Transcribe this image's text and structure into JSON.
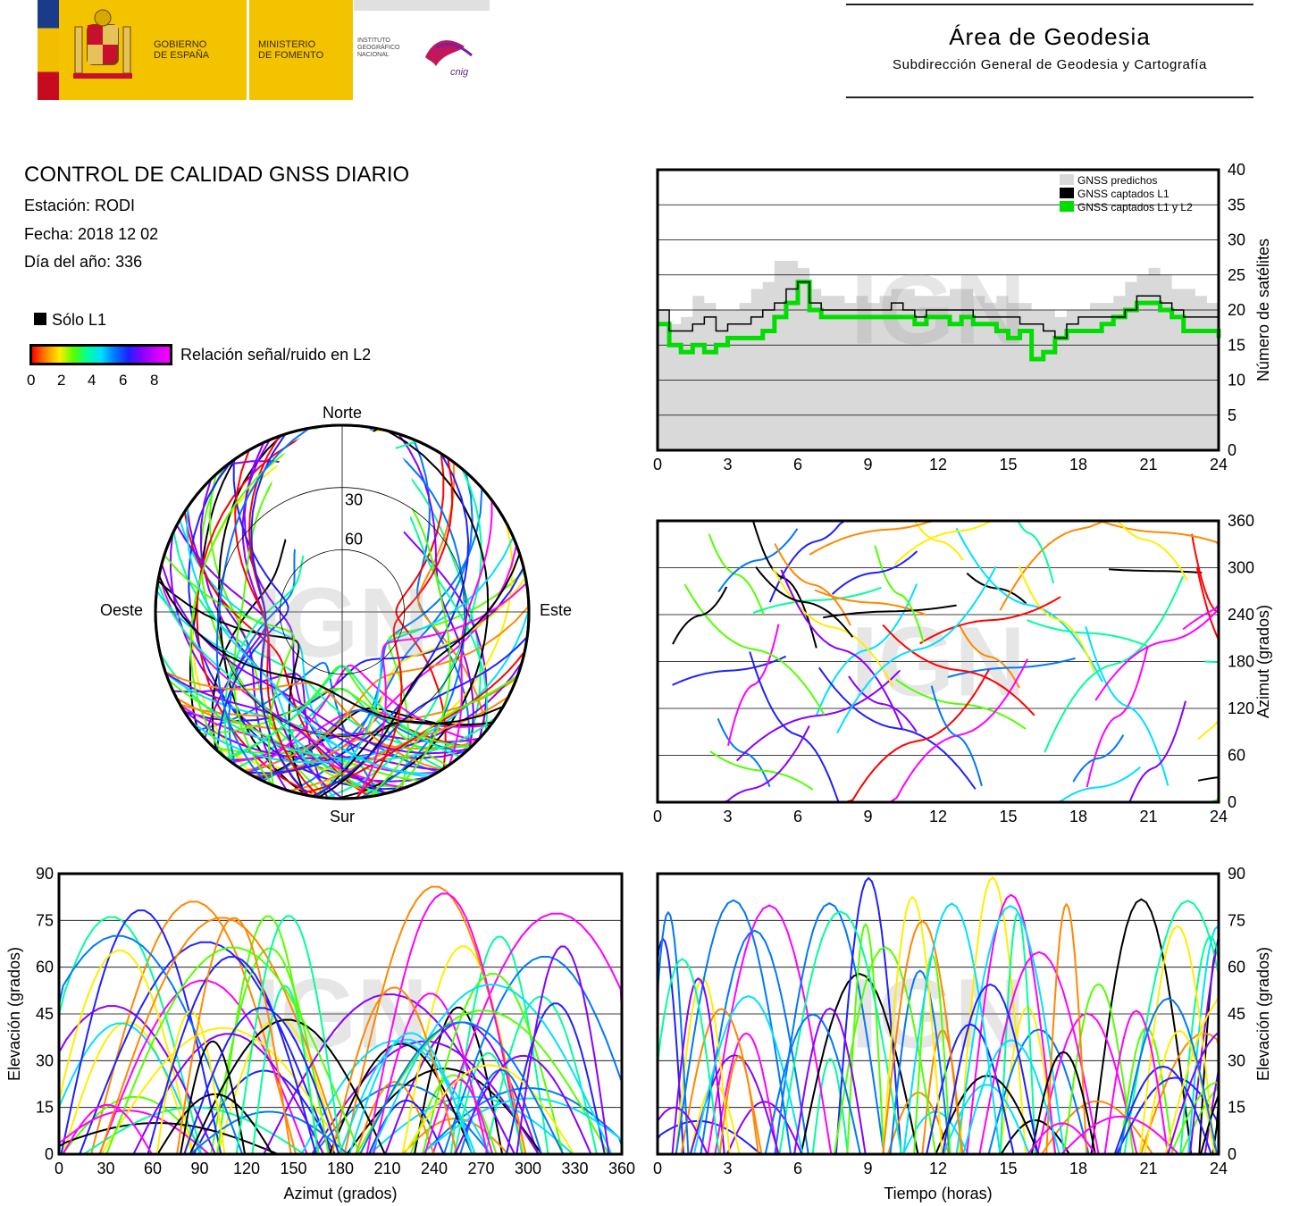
{
  "header": {
    "gobierno": [
      "GOBIERNO",
      "DE ESPAÑA"
    ],
    "ministerio": [
      "MINISTERIO",
      "DE FOMENTO"
    ],
    "instituto": [
      "INSTITUTO",
      "GEOGRÁFICO",
      "NACIONAL"
    ],
    "cnig": "cnig",
    "area_title": "Área de Geodesia",
    "area_subtitle": "Subdirección General de Geodesia y Cartografía"
  },
  "info": {
    "title": "CONTROL DE CALIDAD GNSS DIARIO",
    "station": "Estación: RODI",
    "date": "Fecha: 2018 12 02",
    "doy": "Día del año: 336",
    "only_l1": "Sólo L1",
    "snr_label": "Relación señal/ruido en L2",
    "snr_ticks": [
      "0",
      "2",
      "4",
      "6",
      "8"
    ]
  },
  "watermark": "IGN",
  "colors": {
    "predicted": "#d9d9d9",
    "l1": "#000000",
    "l1l2": "#00dd00",
    "snr_scale": [
      "#ff0000",
      "#ff8800",
      "#ffee00",
      "#55ff00",
      "#00ff99",
      "#00e0ff",
      "#0077ff",
      "#2020ff",
      "#8800ff",
      "#ff00ff"
    ]
  },
  "chart_data": [
    {
      "type": "line",
      "panel": "satellite-count",
      "xlim": [
        0,
        24
      ],
      "ylim": [
        0,
        40
      ],
      "xticks": [
        "0",
        "3",
        "6",
        "9",
        "12",
        "15",
        "18",
        "21",
        "24"
      ],
      "yticks": [
        "0",
        "5",
        "10",
        "15",
        "20",
        "25",
        "30",
        "35",
        "40"
      ],
      "ylabel": "Número de satélites",
      "grid": true,
      "legend_position": "top-right",
      "legend": [
        "GNSS predichos",
        "GNSS captados L1",
        "GNSS captados L1 y L2"
      ],
      "x": [
        0,
        0.5,
        1,
        1.5,
        2,
        2.5,
        3,
        3.5,
        4,
        4.5,
        5,
        5.5,
        6,
        6.5,
        7,
        7.5,
        8,
        8.5,
        9,
        9.5,
        10,
        10.5,
        11,
        11.5,
        12,
        12.5,
        13,
        13.5,
        14,
        14.5,
        15,
        15.5,
        16,
        16.5,
        17,
        17.5,
        18,
        18.5,
        19,
        19.5,
        20,
        20.5,
        21,
        21.5,
        22,
        22.5,
        23,
        23.5,
        24
      ],
      "series": [
        {
          "name": "GNSS predichos",
          "values": [
            20,
            18,
            19,
            22,
            21,
            20,
            20,
            21,
            23,
            24,
            27,
            27,
            26,
            23,
            22,
            22,
            21,
            22,
            21,
            22,
            23,
            23,
            22,
            22,
            22,
            23,
            23,
            22,
            21,
            22,
            21,
            21,
            20,
            20,
            19,
            20,
            20,
            21,
            21,
            22,
            24,
            25,
            26,
            25,
            23,
            23,
            22,
            21,
            20
          ]
        },
        {
          "name": "GNSS captados L1",
          "values": [
            20,
            17,
            17,
            18,
            19,
            17,
            18,
            18,
            19,
            20,
            21,
            23,
            24,
            21,
            20,
            20,
            20,
            20,
            20,
            20,
            21,
            20,
            19,
            20,
            20,
            20,
            20,
            19,
            19,
            19,
            19,
            18,
            18,
            17,
            16,
            18,
            19,
            19,
            19,
            19,
            20,
            22,
            22,
            21,
            20,
            19,
            19,
            19,
            18
          ]
        },
        {
          "name": "GNSS captados L1 y L2",
          "values": [
            18,
            15,
            14,
            15,
            14,
            15,
            16,
            16,
            16,
            17,
            19,
            21,
            24,
            20,
            19,
            19,
            19,
            19,
            19,
            19,
            19,
            19,
            18,
            19,
            19,
            18,
            19,
            18,
            18,
            17,
            16,
            17,
            13,
            14,
            16,
            17,
            17,
            17,
            18,
            19,
            20,
            21,
            21,
            20,
            19,
            17,
            17,
            17,
            16
          ]
        }
      ]
    },
    {
      "type": "scatter",
      "panel": "skyplot",
      "labels": {
        "north": "Norte",
        "south": "Sur",
        "east": "Este",
        "west": "Oeste"
      },
      "ring_labels": [
        "30",
        "60"
      ]
    },
    {
      "type": "scatter",
      "panel": "azimuth-vs-time",
      "xlim": [
        0,
        24
      ],
      "ylim": [
        0,
        360
      ],
      "xticks": [
        "0",
        "3",
        "6",
        "9",
        "12",
        "15",
        "18",
        "21",
        "24"
      ],
      "yticks": [
        "0",
        "60",
        "120",
        "180",
        "240",
        "300",
        "360"
      ],
      "ylabel": "Azimut (grados)",
      "grid": true
    },
    {
      "type": "scatter",
      "panel": "elevation-vs-azimuth",
      "xlim": [
        0,
        360
      ],
      "ylim": [
        0,
        90
      ],
      "xticks": [
        "0",
        "30",
        "60",
        "90",
        "120",
        "150",
        "180",
        "210",
        "240",
        "270",
        "300",
        "330",
        "360"
      ],
      "yticks": [
        "0",
        "15",
        "30",
        "45",
        "60",
        "75",
        "90"
      ],
      "xlabel": "Azimut (grados)",
      "ylabel": "Elevación (grados)",
      "grid": true
    },
    {
      "type": "scatter",
      "panel": "elevation-vs-time",
      "xlim": [
        0,
        24
      ],
      "ylim": [
        0,
        90
      ],
      "xticks": [
        "0",
        "3",
        "6",
        "9",
        "12",
        "15",
        "18",
        "21",
        "24"
      ],
      "yticks": [
        "0",
        "15",
        "30",
        "45",
        "60",
        "75",
        "90"
      ],
      "xlabel": "Tiempo (horas)",
      "ylabel": "Elevación (grados)",
      "grid": true
    }
  ]
}
